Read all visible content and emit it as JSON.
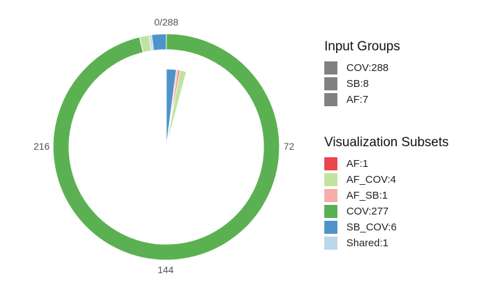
{
  "chart_data": {
    "type": "pie",
    "total": 288,
    "axis_ticks": [
      "0/288",
      "72",
      "144",
      "216"
    ],
    "rings": [
      {
        "name": "Visualization Subsets",
        "slices": [
          {
            "label": "COV:277",
            "value": 277,
            "color": "#5BB151"
          },
          {
            "label": "AF_COV:4",
            "value": 4,
            "color": "#C2E3A0"
          },
          {
            "label": "Shared:1",
            "value": 1,
            "color": "#BCD7EA"
          },
          {
            "label": "SB_COV:6",
            "value": 6,
            "color": "#4F94C8"
          }
        ]
      },
      {
        "name": "Input Groups (inner)",
        "slices": [
          {
            "label": "SB_COV:6",
            "value": 6,
            "color": "#4F94C8"
          },
          {
            "label": "AF_SB:1",
            "value": 1,
            "color": "#F7ABAB"
          },
          {
            "label": "AF:1",
            "value": 1,
            "color": "#E8474B"
          },
          {
            "label": "AF_COV:4",
            "value": 4,
            "color": "#C2E3A0"
          }
        ]
      }
    ]
  },
  "legend_input": {
    "title": "Input Groups",
    "items": [
      {
        "label": "COV:288",
        "color": "#808080"
      },
      {
        "label": "SB:8",
        "color": "#808080"
      },
      {
        "label": "AF:7",
        "color": "#808080"
      }
    ]
  },
  "legend_subsets": {
    "title": "Visualization Subsets",
    "items": [
      {
        "label": "AF:1",
        "color": "#E8474B"
      },
      {
        "label": "AF_COV:4",
        "color": "#C2E3A0"
      },
      {
        "label": "AF_SB:1",
        "color": "#F7ABAB"
      },
      {
        "label": "COV:277",
        "color": "#5BB151"
      },
      {
        "label": "SB_COV:6",
        "color": "#4F94C8"
      },
      {
        "label": "Shared:1",
        "color": "#BCD7EA"
      }
    ]
  }
}
